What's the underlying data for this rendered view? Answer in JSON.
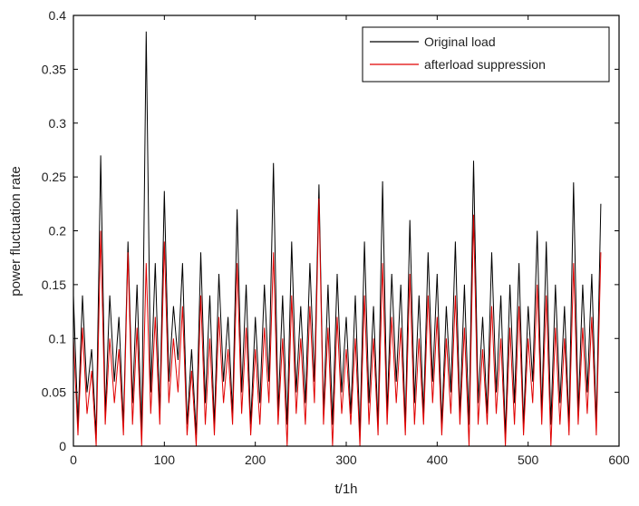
{
  "chart_data": {
    "type": "line",
    "title": "",
    "xlabel": "t/1h",
    "ylabel": "power fluctuation rate",
    "xlim": [
      0,
      600
    ],
    "ylim": [
      0,
      0.4
    ],
    "xticks": [
      "0",
      "100",
      "200",
      "300",
      "400",
      "500",
      "600"
    ],
    "yticks": [
      "0",
      "0.05",
      "0.1",
      "0.15",
      "0.2",
      "0.25",
      "0.3",
      "0.35",
      "0.4"
    ],
    "grid": false,
    "legend_position": "top-right",
    "x_start": 0,
    "x_step": 5,
    "series": [
      {
        "name": "Original load",
        "color": "#000000",
        "values": [
          0.14,
          0.02,
          0.14,
          0.05,
          0.09,
          0.01,
          0.27,
          0.03,
          0.14,
          0.06,
          0.12,
          0.02,
          0.19,
          0.04,
          0.15,
          0.01,
          0.385,
          0.05,
          0.17,
          0.03,
          0.237,
          0.06,
          0.13,
          0.08,
          0.17,
          0.02,
          0.09,
          0.01,
          0.18,
          0.04,
          0.14,
          0.02,
          0.16,
          0.06,
          0.12,
          0.03,
          0.22,
          0.05,
          0.15,
          0.02,
          0.12,
          0.04,
          0.15,
          0.06,
          0.263,
          0.03,
          0.14,
          0.02,
          0.19,
          0.05,
          0.13,
          0.04,
          0.17,
          0.06,
          0.243,
          0.03,
          0.15,
          0.02,
          0.16,
          0.05,
          0.12,
          0.03,
          0.14,
          0.01,
          0.19,
          0.04,
          0.13,
          0.02,
          0.246,
          0.03,
          0.16,
          0.06,
          0.15,
          0.02,
          0.21,
          0.04,
          0.14,
          0.03,
          0.18,
          0.06,
          0.16,
          0.02,
          0.13,
          0.05,
          0.19,
          0.03,
          0.15,
          0.02,
          0.265,
          0.04,
          0.12,
          0.03,
          0.18,
          0.05,
          0.14,
          0.01,
          0.15,
          0.04,
          0.17,
          0.02,
          0.13,
          0.06,
          0.2,
          0.03,
          0.19,
          0.02,
          0.15,
          0.04,
          0.13,
          0.02,
          0.245,
          0.03,
          0.15,
          0.05,
          0.16,
          0.02,
          0.225
        ]
      },
      {
        "name": "afterload suppression",
        "color": "#e00000",
        "values": [
          0.1,
          0.01,
          0.11,
          0.03,
          0.07,
          0.0,
          0.2,
          0.02,
          0.1,
          0.04,
          0.09,
          0.01,
          0.18,
          0.02,
          0.11,
          0.0,
          0.17,
          0.03,
          0.12,
          0.02,
          0.19,
          0.04,
          0.1,
          0.05,
          0.13,
          0.01,
          0.07,
          0.0,
          0.14,
          0.02,
          0.1,
          0.01,
          0.12,
          0.04,
          0.09,
          0.02,
          0.17,
          0.03,
          0.11,
          0.01,
          0.09,
          0.02,
          0.11,
          0.04,
          0.18,
          0.02,
          0.1,
          0.0,
          0.14,
          0.03,
          0.1,
          0.02,
          0.13,
          0.04,
          0.23,
          0.02,
          0.11,
          0.0,
          0.12,
          0.03,
          0.09,
          0.02,
          0.1,
          0.0,
          0.14,
          0.02,
          0.1,
          0.01,
          0.17,
          0.02,
          0.12,
          0.04,
          0.11,
          0.01,
          0.16,
          0.02,
          0.1,
          0.02,
          0.14,
          0.04,
          0.12,
          0.01,
          0.1,
          0.03,
          0.14,
          0.02,
          0.11,
          0.0,
          0.215,
          0.02,
          0.09,
          0.02,
          0.13,
          0.03,
          0.1,
          0.0,
          0.11,
          0.02,
          0.13,
          0.01,
          0.1,
          0.04,
          0.15,
          0.02,
          0.14,
          0.0,
          0.11,
          0.02,
          0.1,
          0.01,
          0.17,
          0.02,
          0.11,
          0.03,
          0.12,
          0.01,
          0.18
        ]
      }
    ]
  }
}
